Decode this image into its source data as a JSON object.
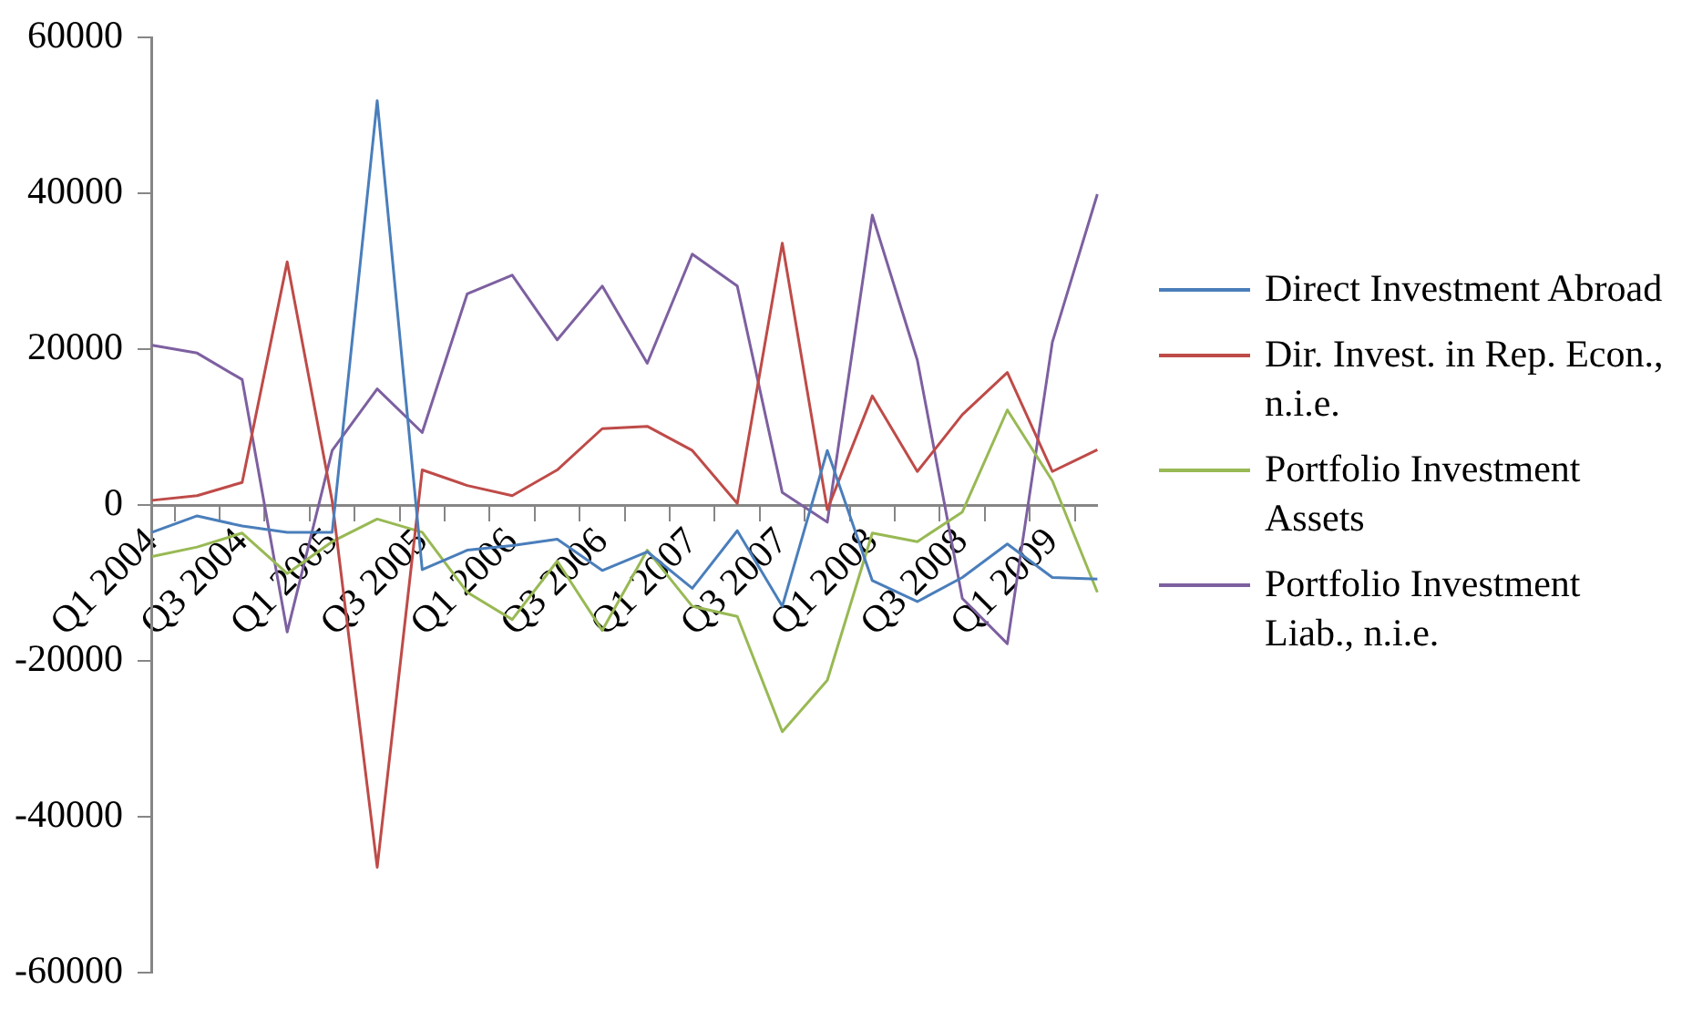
{
  "chart_data": {
    "type": "line",
    "categories": [
      "Q1 2004",
      null,
      "Q3 2004",
      null,
      "Q1 2005",
      null,
      "Q3 2005",
      null,
      "Q1 2006",
      null,
      "Q3 2006",
      null,
      "Q1 2007",
      null,
      "Q3 2007",
      null,
      "Q1 2008",
      null,
      "Q3 2008",
      null,
      "Q1 2009",
      null
    ],
    "series": [
      {
        "name": "Direct Investment Abroad",
        "color": "#4a7ebb",
        "values": [
          -3500,
          -1400,
          -2700,
          -3500,
          -3500,
          51900,
          -8300,
          -5800,
          -5200,
          -4400,
          -8400,
          -6000,
          -10700,
          -3300,
          -13000,
          7000,
          -9700,
          -12400,
          -9300,
          -5000,
          -9300,
          -9500
        ]
      },
      {
        "name": "Dir. Invest. in Rep. Econ., n.i.e.",
        "color": "#be4b48",
        "values": [
          600,
          1200,
          2900,
          31200,
          500,
          -46500,
          4500,
          2500,
          1200,
          4500,
          9800,
          10100,
          7000,
          200,
          33600,
          -600,
          14000,
          4300,
          11600,
          17000,
          4300,
          7100
        ]
      },
      {
        "name": "Portfolio Investment Assets",
        "color": "#98b954",
        "values": [
          -6600,
          -5400,
          -3600,
          -8800,
          -4700,
          -1800,
          -3500,
          -11200,
          -14700,
          -7200,
          -16100,
          -5800,
          -13000,
          -14300,
          -29100,
          -22500,
          -3600,
          -4700,
          -900,
          12200,
          3100,
          -11200
        ]
      },
      {
        "name": "Portfolio Investment Liab., n.i.e.",
        "color": "#7d60a0",
        "values": [
          20500,
          19500,
          16100,
          -16300,
          7000,
          14900,
          9300,
          27100,
          29500,
          21200,
          28100,
          18200,
          32200,
          28100,
          1600,
          -2200,
          37200,
          18600,
          -12000,
          -17800,
          20900,
          39900
        ]
      }
    ],
    "ylim": [
      -60000,
      60000
    ],
    "yticks": [
      -60000,
      -40000,
      -20000,
      0,
      20000,
      40000,
      60000
    ],
    "legend": "right",
    "marker": "none",
    "line_style": "solid"
  }
}
